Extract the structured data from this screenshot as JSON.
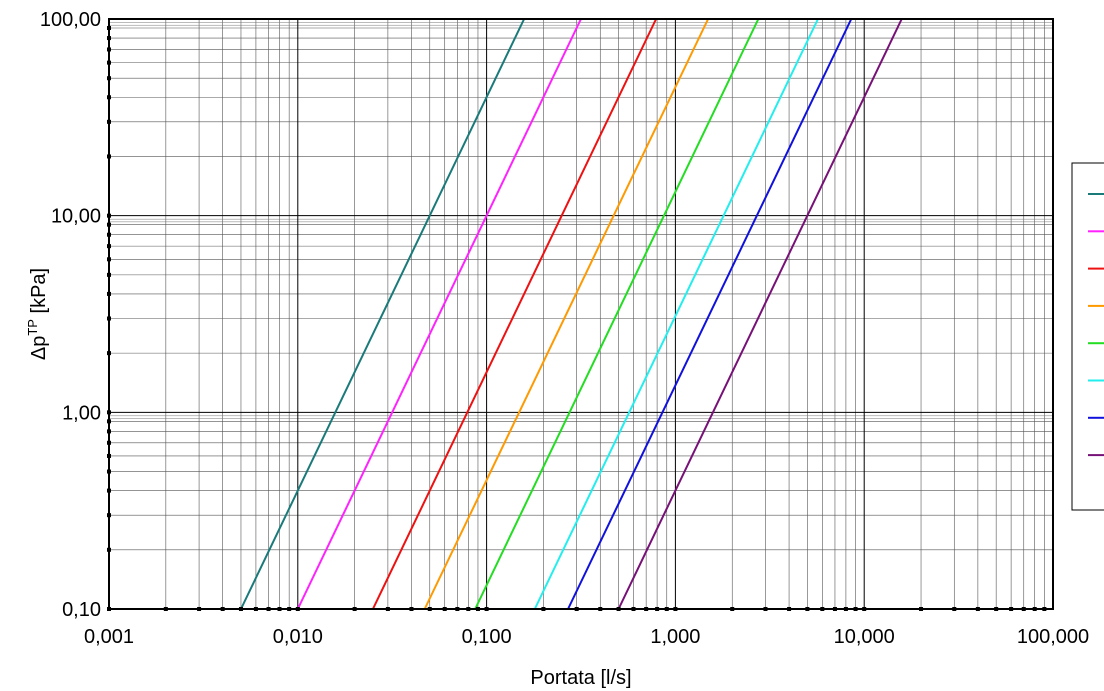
{
  "chart_data": {
    "type": "line",
    "title": "",
    "xlabel": "Portata [l/s]",
    "ylabel_main": "Δp",
    "ylabel_sup": "TP",
    "ylabel_unit": " [kPa]",
    "x_scale": "log",
    "y_scale": "log",
    "xlim": [
      0.001,
      100
    ],
    "ylim": [
      0.1,
      100
    ],
    "x_ticks": [
      0.001,
      0.01,
      0.1,
      1,
      10,
      100
    ],
    "x_tick_labels": [
      "0,001",
      "0,010",
      "0,100",
      "1,000",
      "10,000",
      "100,000"
    ],
    "y_ticks": [
      0.1,
      1,
      10,
      100
    ],
    "y_tick_labels": [
      "0,10",
      "1,00",
      "10,00",
      "100,00"
    ],
    "grid": true,
    "legend_position": "right",
    "series": [
      {
        "color": "#1a7a7a",
        "x": [
          0.005,
          0.158
        ],
        "y": [
          0.1,
          100
        ]
      },
      {
        "color": "#ff22ff",
        "x": [
          0.01,
          0.316
        ],
        "y": [
          0.1,
          100
        ]
      },
      {
        "color": "#ee1111",
        "x": [
          0.025,
          0.79
        ],
        "y": [
          0.1,
          100
        ]
      },
      {
        "color": "#ff9900",
        "x": [
          0.047,
          1.49
        ],
        "y": [
          0.1,
          100
        ]
      },
      {
        "color": "#22dd22",
        "x": [
          0.087,
          2.75
        ],
        "y": [
          0.1,
          100
        ]
      },
      {
        "color": "#22eeee",
        "x": [
          0.18,
          5.69
        ],
        "y": [
          0.1,
          100
        ]
      },
      {
        "color": "#1111dd",
        "x": [
          0.27,
          8.54
        ],
        "y": [
          0.1,
          100
        ]
      },
      {
        "color": "#771177",
        "x": [
          0.5,
          15.8
        ],
        "y": [
          0.1,
          100
        ]
      }
    ]
  }
}
